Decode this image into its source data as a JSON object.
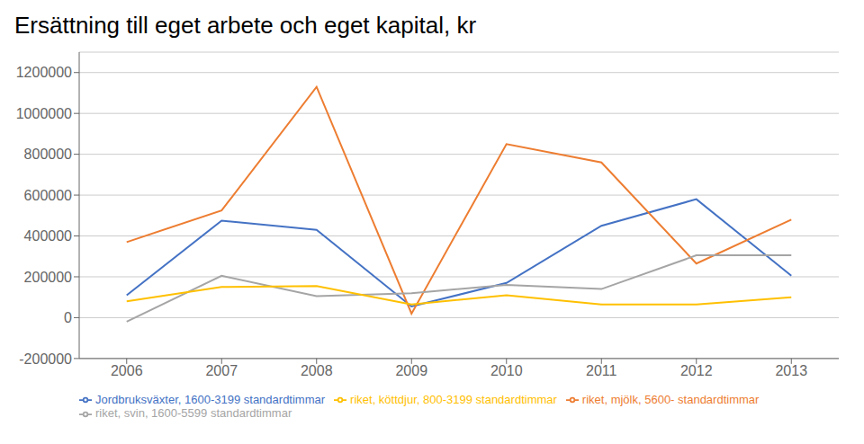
{
  "chart_data": {
    "type": "line",
    "title": "Ersättning till eget arbete och eget kapital, kr",
    "x": [
      2006,
      2007,
      2008,
      2009,
      2010,
      2011,
      2012,
      2013
    ],
    "xlim": [
      2005.5,
      2013.5
    ],
    "xticks": [
      2006,
      2007,
      2008,
      2009,
      2010,
      2011,
      2012,
      2013
    ],
    "ylim": [
      -200000,
      1300000
    ],
    "yticks": [
      -200000,
      0,
      200000,
      400000,
      600000,
      800000,
      1000000,
      1200000
    ],
    "grid": true,
    "legend": "bottom",
    "series": [
      {
        "name": "Jordbruksväxter, 1600-3199 standardtimmar",
        "color": "#4472C4",
        "values": [
          110000,
          475000,
          430000,
          55000,
          170000,
          450000,
          580000,
          205000
        ]
      },
      {
        "name": "riket, mjölk, 5600- standardtimmar",
        "color": "#ED7D31",
        "values": [
          370000,
          525000,
          1130000,
          20000,
          850000,
          760000,
          265000,
          480000
        ]
      },
      {
        "name": "riket, svin, 1600-5599 standardtimmar",
        "color": "#A5A5A5",
        "values": [
          -20000,
          205000,
          105000,
          120000,
          160000,
          140000,
          305000,
          305000
        ]
      },
      {
        "name": "riket, köttdjur, 800-3199 standardtimmar",
        "color": "#FFC000",
        "values": [
          80000,
          150000,
          155000,
          65000,
          110000,
          65000,
          65000,
          100000
        ]
      }
    ]
  }
}
